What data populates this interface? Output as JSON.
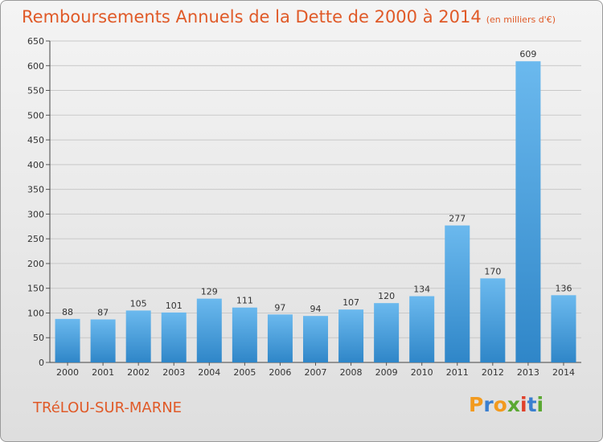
{
  "title": "Remboursements Annuels de la Dette de 2000 à 2014",
  "subtitle": "(en milliers d'€)",
  "commune": "TRéLOU-SUR-MARNE",
  "logo": {
    "letters": [
      "P",
      "r",
      "o",
      "x",
      "i",
      "t",
      "i"
    ],
    "colors": [
      "#f29a1e",
      "#3a7fd0",
      "#f29a1e",
      "#5aa832",
      "#e0402a",
      "#3a7fd0",
      "#5aa832"
    ]
  },
  "colors": {
    "bar_light": "#6bb9ee",
    "bar_dark": "#2f86c8",
    "title": "#e05a28"
  },
  "chart_data": {
    "type": "bar",
    "title": "Remboursements Annuels de la Dette de 2000 à 2014",
    "subtitle": "(en milliers d'€)",
    "categories": [
      "2000",
      "2001",
      "2002",
      "2003",
      "2004",
      "2005",
      "2006",
      "2007",
      "2008",
      "2009",
      "2010",
      "2011",
      "2012",
      "2013",
      "2014"
    ],
    "values": [
      88,
      87,
      105,
      101,
      129,
      111,
      97,
      94,
      107,
      120,
      134,
      277,
      170,
      609,
      136
    ],
    "ylim": [
      0,
      650
    ],
    "yticks": [
      0,
      50,
      100,
      150,
      200,
      250,
      300,
      350,
      400,
      450,
      500,
      550,
      600,
      650
    ],
    "grid": true
  }
}
